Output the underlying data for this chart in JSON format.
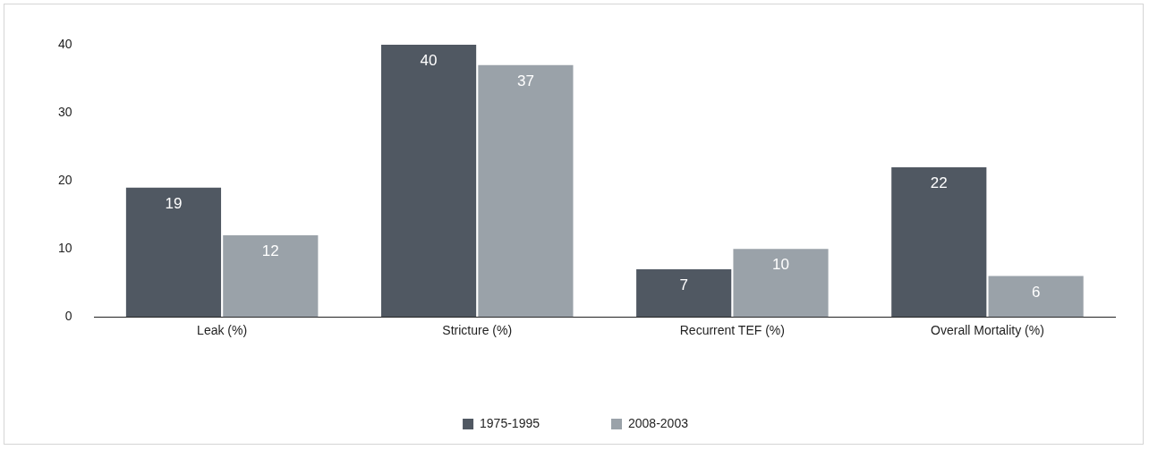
{
  "chart_data": {
    "type": "bar",
    "categories": [
      "Leak (%)",
      "Stricture (%)",
      "Recurrent TEF (%)",
      "Overall Mortality (%)"
    ],
    "series": [
      {
        "name": "1975-1995",
        "color": "#505862",
        "values": [
          19,
          40,
          7,
          22
        ]
      },
      {
        "name": "2008-2003",
        "color": "#9aa2a9",
        "values": [
          12,
          37,
          10,
          6
        ]
      }
    ],
    "ylim": [
      0,
      40
    ],
    "yticks": [
      0,
      10,
      20,
      30,
      40
    ],
    "grid": false,
    "legend": "bottom",
    "data_labels": true
  }
}
